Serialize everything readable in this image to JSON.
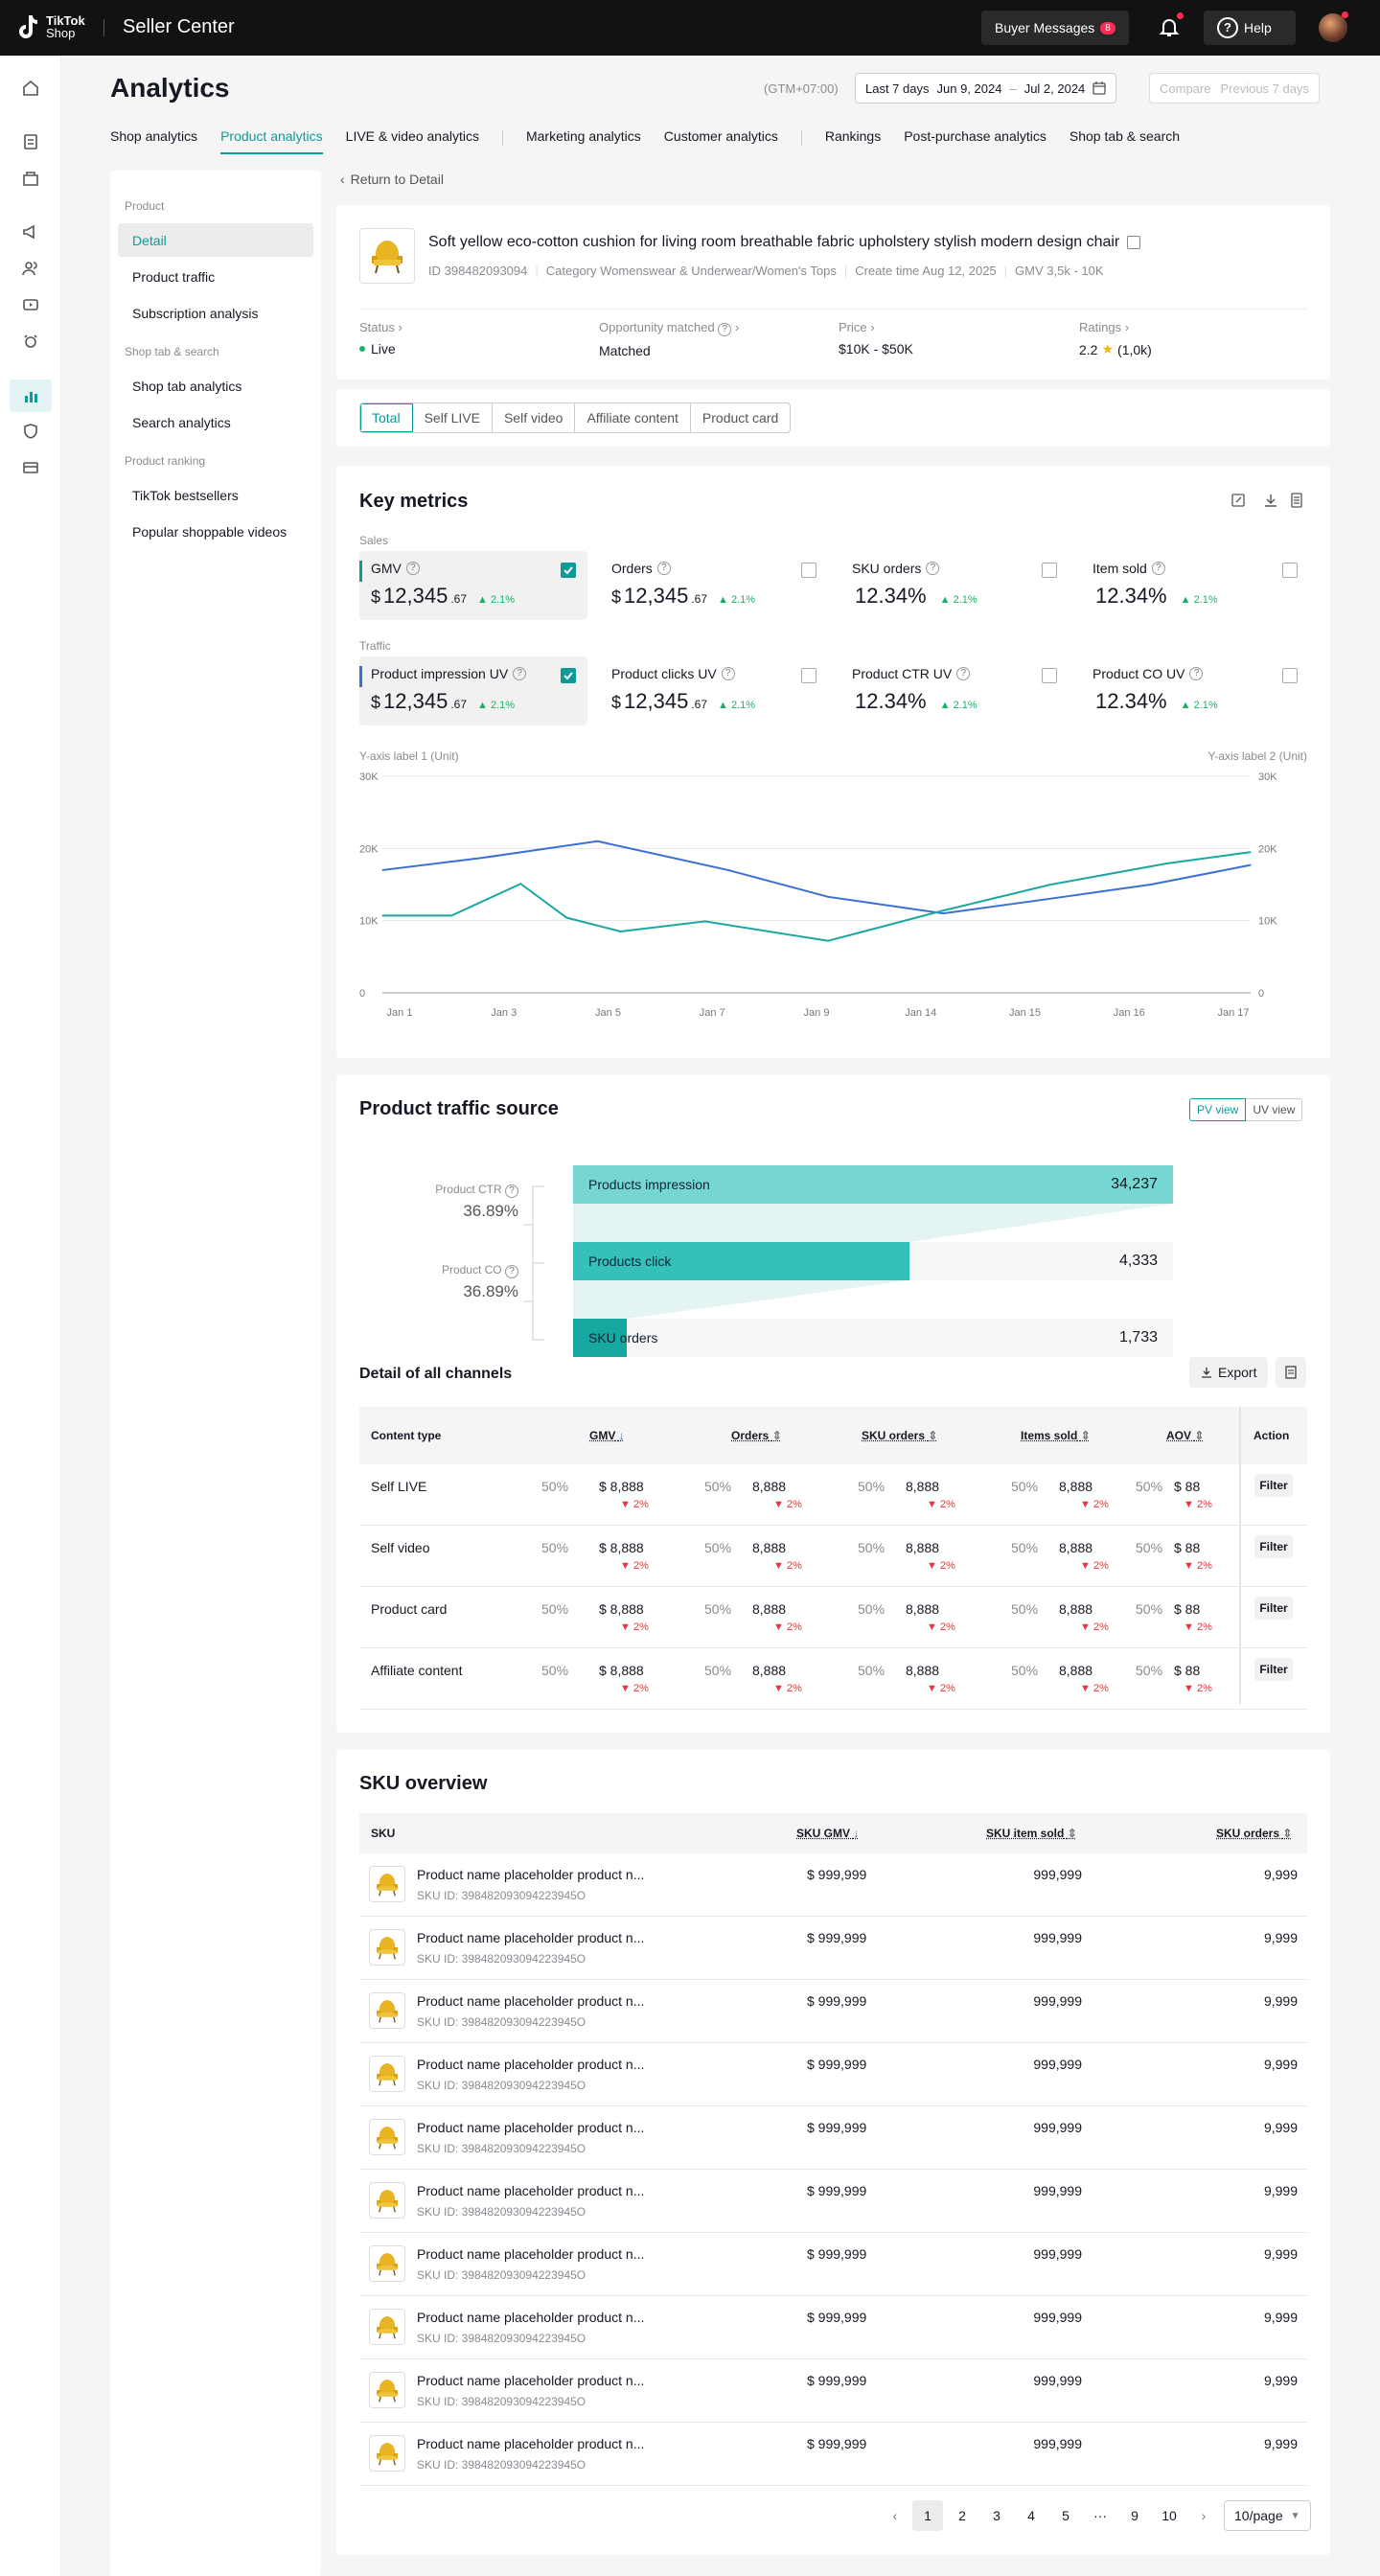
{
  "topbar": {
    "brand_line1": "TikTok",
    "brand_line2": "Shop",
    "title": "Seller Center",
    "buyer_messages": "Buyer Messages",
    "buyer_messages_count": "8",
    "help": "Help"
  },
  "header": {
    "title": "Analytics",
    "timezone": "(GTM+07:00)",
    "range_label": "Last 7 days",
    "date_start": "Jun 9, 2024",
    "date_sep": "–",
    "date_end": "Jul 2, 2024",
    "compare_label": "Compare",
    "compare_value": "Previous 7 days"
  },
  "tabs": [
    "Shop analytics",
    "Product analytics",
    "LIVE & video analytics",
    "Marketing analytics",
    "Customer analytics",
    "Rankings",
    "Post-purchase analytics",
    "Shop tab & search"
  ],
  "subnav": {
    "group1": "Product",
    "group1_items": [
      "Detail",
      "Product traffic",
      "Subscription analysis"
    ],
    "group2": "Shop tab & search",
    "group2_items": [
      "Shop tab analytics",
      "Search analytics"
    ],
    "group3": "Product ranking",
    "group3_items": [
      "TikTok bestsellers",
      "Popular shoppable videos"
    ]
  },
  "back_link": "Return to Detail",
  "product": {
    "title": "Soft yellow eco-cotton cushion for living room breathable fabric upholstery stylish modern design chair",
    "id": "ID 398482093094",
    "category": "Category Womenswear & Underwear/Women's Tops",
    "create_time": "Create time Aug 12, 2025",
    "gmv": "GMV 3,5k - 10K",
    "status_label": "Status",
    "status_value": "Live",
    "opportunity_label": "Opportunity matched",
    "opportunity_value": "Matched",
    "price_label": "Price",
    "price_value": "$10K - $50K",
    "ratings_label": "Ratings",
    "ratings_value": "2.2",
    "ratings_count": "(1,0k)"
  },
  "channel_tabs": [
    "Total",
    "Self LIVE",
    "Self video",
    "Affiliate content",
    "Product card"
  ],
  "key_metrics": {
    "title": "Key metrics",
    "sales_label": "Sales",
    "traffic_label": "Traffic",
    "sales": [
      {
        "label": "GMV",
        "currency": "$",
        "value": "12,345",
        "decimals": ".67",
        "change": "2.1%",
        "selected": true
      },
      {
        "label": "Orders",
        "currency": "$",
        "value": "12,345",
        "decimals": ".67",
        "change": "2.1%",
        "selected": false
      },
      {
        "label": "SKU orders",
        "currency": "",
        "value": "12.34%",
        "decimals": "",
        "change": "2.1%",
        "selected": false
      },
      {
        "label": "Item sold",
        "currency": "",
        "value": "12.34%",
        "decimals": "",
        "change": "2.1%",
        "selected": false
      }
    ],
    "traffic": [
      {
        "label": "Product impression UV",
        "currency": "$",
        "value": "12,345",
        "decimals": ".67",
        "change": "2.1%",
        "selected": true
      },
      {
        "label": "Product clicks UV",
        "currency": "$",
        "value": "12,345",
        "decimals": ".67",
        "change": "2.1%",
        "selected": false
      },
      {
        "label": "Product CTR UV",
        "currency": "",
        "value": "12.34%",
        "decimals": "",
        "change": "2.1%",
        "selected": false
      },
      {
        "label": "Product CO UV",
        "currency": "",
        "value": "12.34%",
        "decimals": "",
        "change": "2.1%",
        "selected": false
      }
    ]
  },
  "chart_data": {
    "type": "line",
    "ylabel": "Y-axis label 1 (Unit)",
    "ylabel2": "Y-axis label 2 (Unit)",
    "categories": [
      "Jan 1",
      "Jan 3",
      "Jan 5",
      "Jan 7",
      "Jan 9",
      "Jan 14",
      "Jan 15",
      "Jan 16",
      "Jan 17"
    ],
    "ylim": [
      0,
      30000
    ],
    "yticks": [
      "0",
      "10K",
      "20K",
      "30K"
    ],
    "grid": true,
    "series": [
      {
        "color": "#3b6fd4",
        "x": [
          0,
          1.3,
          2.8,
          4.5,
          5.8,
          7.3,
          8.6,
          10,
          11.3
        ],
        "values": [
          17000,
          18700,
          21000,
          17000,
          13300,
          11000,
          12900,
          15000,
          17700
        ]
      },
      {
        "color": "#1aa8a0",
        "x": [
          0,
          0.9,
          1.8,
          2.4,
          3.1,
          4.2,
          5.8,
          7.3,
          8.7,
          10.2,
          11.3
        ],
        "values": [
          10700,
          10700,
          15100,
          10400,
          8500,
          9900,
          7200,
          11400,
          15000,
          17900,
          19500
        ]
      }
    ]
  },
  "traffic_source": {
    "title": "Product traffic source",
    "pv_view": "PV view",
    "uv_view": "UV view",
    "ctr_label": "Product CTR",
    "ctr_value": "36.89%",
    "co_label": "Product CO",
    "co_value": "36.89%",
    "funnel": [
      {
        "label": "Products impression",
        "value": "34,237",
        "fill": 1.0
      },
      {
        "label": "Products click",
        "value": "4,333",
        "fill": 0.56
      },
      {
        "label": "SKU orders",
        "value": "1,733",
        "fill": 0.09
      }
    ]
  },
  "channels": {
    "title": "Detail of all channels",
    "export": "Export",
    "headers": [
      "Content type",
      "GMV",
      "Orders",
      "SKU orders",
      "Items sold",
      "AOV",
      "Action"
    ],
    "rows": [
      {
        "name": "Self LIVE",
        "pct": "50%",
        "gmv": "$ 8,888",
        "orders": "8,888",
        "sku": "8,888",
        "items": "8,888",
        "aov": "$ 88",
        "delta": "2%",
        "action": "Filter"
      },
      {
        "name": "Self video",
        "pct": "50%",
        "gmv": "$ 8,888",
        "orders": "8,888",
        "sku": "8,888",
        "items": "8,888",
        "aov": "$ 88",
        "delta": "2%",
        "action": "Filter"
      },
      {
        "name": "Product card",
        "pct": "50%",
        "gmv": "$ 8,888",
        "orders": "8,888",
        "sku": "8,888",
        "items": "8,888",
        "aov": "$ 88",
        "delta": "2%",
        "action": "Filter"
      },
      {
        "name": "Affiliate content",
        "pct": "50%",
        "gmv": "$ 8,888",
        "orders": "8,888",
        "sku": "8,888",
        "items": "8,888",
        "aov": "$ 88",
        "delta": "2%",
        "action": "Filter"
      }
    ]
  },
  "sku_overview": {
    "title": "SKU overview",
    "headers": [
      "SKU",
      "SKU GMV",
      "SKU item sold",
      "SKU orders"
    ],
    "rows": [
      {
        "name": "Product name placeholder product n...",
        "sku_id": "SKU ID: 398482093094223945O",
        "gmv": "$ 999,999",
        "sold": "999,999",
        "orders": "9,999"
      },
      {
        "name": "Product name placeholder product n...",
        "sku_id": "SKU ID: 398482093094223945O",
        "gmv": "$ 999,999",
        "sold": "999,999",
        "orders": "9,999"
      },
      {
        "name": "Product name placeholder product n...",
        "sku_id": "SKU ID: 398482093094223945O",
        "gmv": "$ 999,999",
        "sold": "999,999",
        "orders": "9,999"
      },
      {
        "name": "Product name placeholder product n...",
        "sku_id": "SKU ID: 398482093094223945O",
        "gmv": "$ 999,999",
        "sold": "999,999",
        "orders": "9,999"
      },
      {
        "name": "Product name placeholder product n...",
        "sku_id": "SKU ID: 398482093094223945O",
        "gmv": "$ 999,999",
        "sold": "999,999",
        "orders": "9,999"
      },
      {
        "name": "Product name placeholder product n...",
        "sku_id": "SKU ID: 398482093094223945O",
        "gmv": "$ 999,999",
        "sold": "999,999",
        "orders": "9,999"
      },
      {
        "name": "Product name placeholder product n...",
        "sku_id": "SKU ID: 398482093094223945O",
        "gmv": "$ 999,999",
        "sold": "999,999",
        "orders": "9,999"
      },
      {
        "name": "Product name placeholder product n...",
        "sku_id": "SKU ID: 398482093094223945O",
        "gmv": "$ 999,999",
        "sold": "999,999",
        "orders": "9,999"
      },
      {
        "name": "Product name placeholder product n...",
        "sku_id": "SKU ID: 398482093094223945O",
        "gmv": "$ 999,999",
        "sold": "999,999",
        "orders": "9,999"
      },
      {
        "name": "Product name placeholder product n...",
        "sku_id": "SKU ID: 398482093094223945O",
        "gmv": "$ 999,999",
        "sold": "999,999",
        "orders": "9,999"
      }
    ]
  },
  "pagination": {
    "pages": [
      "1",
      "2",
      "3",
      "4",
      "5",
      "···",
      "9",
      "10"
    ],
    "current": "1",
    "per_page": "10/page"
  },
  "colors": {
    "accent": "#0f9a9a",
    "line_blue": "#3b6fd4",
    "line_teal": "#1aa8a0",
    "positive": "#1bb068",
    "negative": "#e5363b"
  }
}
